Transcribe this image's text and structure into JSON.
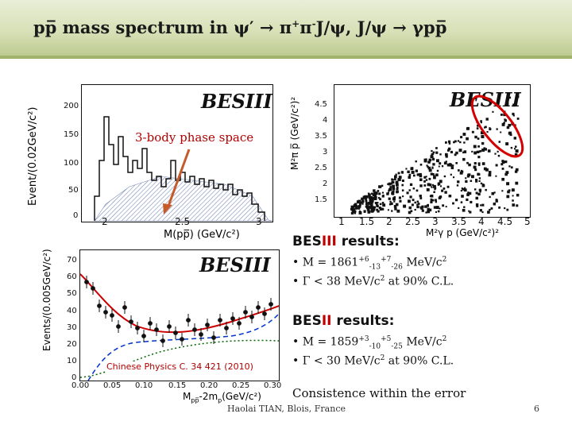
{
  "header": {
    "title_main": "pp̅ mass spectrum in ψ′ → π",
    "title_sup1": "+",
    "title_mid": "π",
    "title_sup2": "-",
    "title_end": "J/ψ, J/ψ → γpp̅"
  },
  "plot_top_left": {
    "logo": "BESIII",
    "ylabel": "Event/(0.02GeV/c²)",
    "xlabel": "M(pp̅) (GeV/c²)",
    "yticks": [
      "200",
      "150",
      "100",
      "50",
      "0"
    ],
    "xticks": [
      "2",
      "2.5",
      "3"
    ],
    "annotation": "3-body phase space"
  },
  "plot_top_right": {
    "logo": "BESIII",
    "ylabel": "M²π p̅ (GeV/c²)²",
    "xlabel": "M²γ p (GeV/c²)²",
    "yticks": [
      "4.5",
      "4",
      "3.5",
      "3",
      "2.5",
      "2",
      "1.5"
    ],
    "xticks": [
      "1",
      "1.5",
      "2",
      "2.5",
      "3",
      "3.5",
      "4",
      "4.5",
      "5"
    ]
  },
  "plot_bottom_left": {
    "logo": "BESIII",
    "ylabel": "Events/(0.005GeV/c²)",
    "xlabel": "M",
    "xlabel_sub1": "pp̅",
    "xlabel_mid": "-2m",
    "xlabel_sub2": "p",
    "xlabel_end": "(GeV/c²)",
    "yticks": [
      "70",
      "60",
      "50",
      "40",
      "30",
      "20",
      "10",
      "0"
    ],
    "xticks": [
      "0.00",
      "0.05",
      "0.10",
      "0.15",
      "0.20",
      "0.25",
      "0.30"
    ],
    "reference": "Chinese Physics C. 34 421 (2010)"
  },
  "results": {
    "besiii_prefix": "BES",
    "besiii_red": "III",
    "besiii_suffix": " results:",
    "besiii_mass_a": "• M = 1861",
    "besiii_mass_s1": "+6",
    "besiii_mass_s2": "-13",
    "besiii_mass_s3": "+7",
    "besiii_mass_s4": "-26",
    "besiii_mass_b": " MeV/c",
    "besiii_mass_c": "2",
    "besiii_width_a": "• Γ < 38 MeV/c",
    "besiii_width_b": "2",
    "besiii_width_c": " at 90% C.L.",
    "besii_prefix": "BES",
    "besii_red": "II",
    "besii_suffix": " results:",
    "besii_mass_a": "• M = 1859",
    "besii_mass_s1": "+3",
    "besii_mass_s2": "-10",
    "besii_mass_s3": "+5",
    "besii_mass_s4": "-25",
    "besii_mass_b": " MeV/c",
    "besii_mass_c": "2",
    "besii_width_a": "• Γ < 30 MeV/c",
    "besii_width_b": "2",
    "besii_width_c": " at 90% C.L.",
    "consistence": "Consistence within the error"
  },
  "footer": {
    "author": "Haolai TIAN, Blois, France",
    "page": "6"
  },
  "colors": {
    "accent_red": "#c00000",
    "band": "#d7e0b6"
  }
}
